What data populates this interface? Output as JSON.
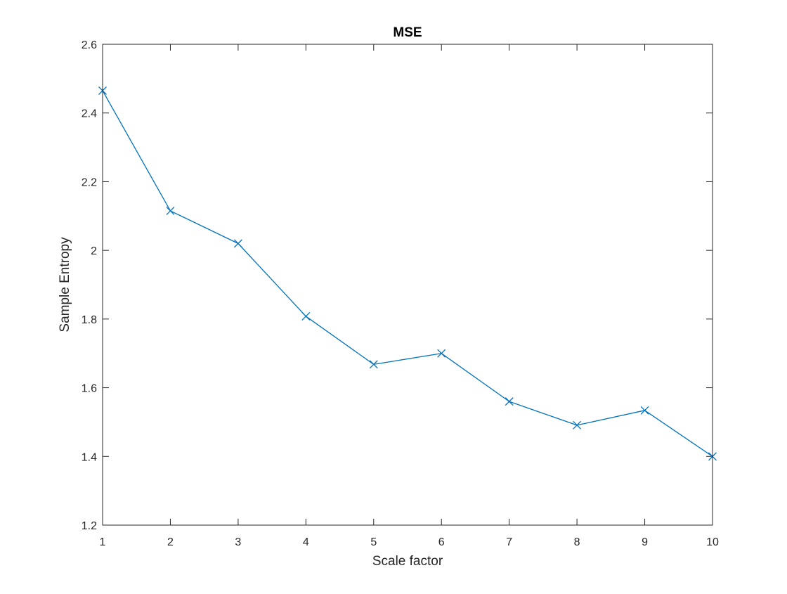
{
  "chart_data": {
    "type": "line",
    "title": "MSE",
    "xlabel": "Scale factor",
    "ylabel": "Sample Entropy",
    "xlim": [
      1,
      10
    ],
    "ylim": [
      1.2,
      2.6
    ],
    "xticks": [
      1,
      2,
      3,
      4,
      5,
      6,
      7,
      8,
      9,
      10
    ],
    "xtick_labels": [
      "1",
      "2",
      "3",
      "4",
      "5",
      "6",
      "7",
      "8",
      "9",
      "10"
    ],
    "yticks": [
      1.2,
      1.4,
      1.6,
      1.8,
      2.0,
      2.2,
      2.4,
      2.6
    ],
    "ytick_labels": [
      "1.2",
      "1.4",
      "1.6",
      "1.8",
      "2",
      "2.2",
      "2.4",
      "2.6"
    ],
    "grid": false,
    "box": true,
    "marker": "x",
    "color": "#0072BD",
    "series": [
      {
        "x": [
          1,
          2,
          3,
          4,
          5,
          6,
          7,
          8,
          9,
          10
        ],
        "values": [
          2.465,
          2.115,
          2.02,
          1.808,
          1.668,
          1.7,
          1.56,
          1.491,
          1.534,
          1.4
        ]
      }
    ]
  }
}
